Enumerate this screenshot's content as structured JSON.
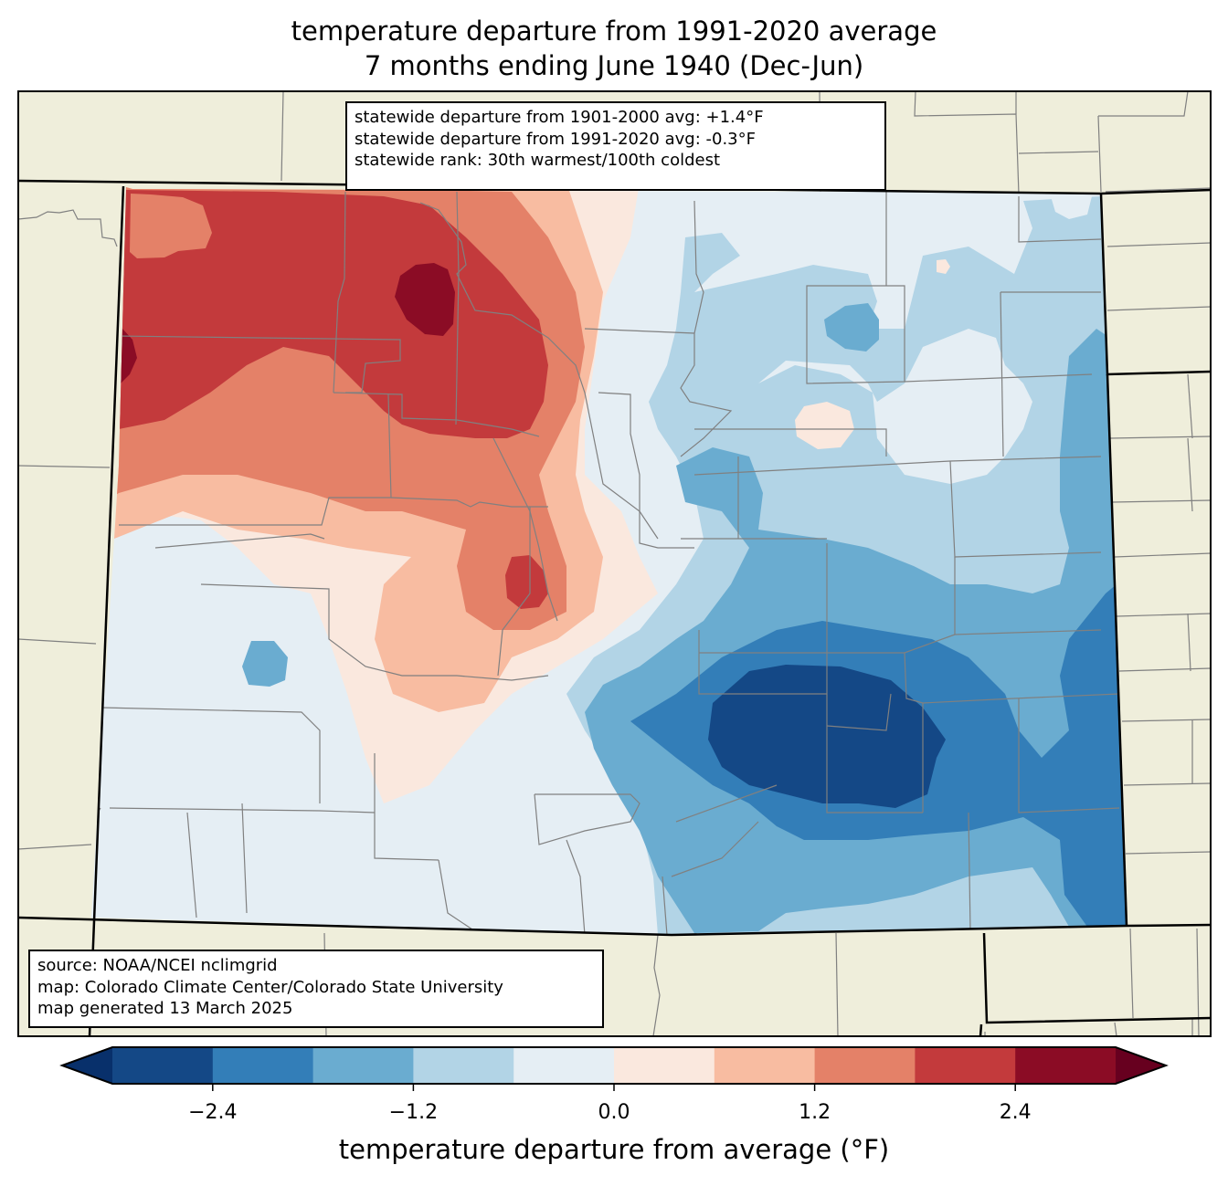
{
  "title": {
    "line1": "temperature departure from 1991-2020 average",
    "line2": "7 months ending June 1940 (Dec-Jun)"
  },
  "stats_box": {
    "line1": "statewide departure from 1901-2000 avg: +1.4°F",
    "line2": "statewide departure from 1991-2020 avg: -0.3°F",
    "line3": "statewide rank: 30th warmest/100th coldest"
  },
  "source_box": {
    "line1": "source: NOAA/NCEI nclimgrid",
    "line2": "map: Colorado Climate Center/Colorado State University",
    "line3": "map generated 13 March 2025"
  },
  "colorbar": {
    "label": "temperature departure from average (°F)",
    "min": -3.0,
    "max": 3.0,
    "step": 0.6,
    "extend": "both",
    "ticks": [
      {
        "value": -2.4,
        "label": "−2.4"
      },
      {
        "value": -1.2,
        "label": "−1.2"
      },
      {
        "value": 0.0,
        "label": "0.0"
      },
      {
        "value": 1.2,
        "label": "1.2"
      },
      {
        "value": 2.4,
        "label": "2.4"
      }
    ],
    "colors": {
      "under": "#08306b",
      "bins": [
        "#144886",
        "#337eb8",
        "#6aacd0",
        "#b2d4e6",
        "#e5eef4",
        "#fae8de",
        "#f8bca1",
        "#e48168",
        "#c33a3c",
        "#8b0c25"
      ],
      "over": "#67001f"
    }
  },
  "map_colors": {
    "land": "#efeedb",
    "state_border": "#000000",
    "county_border": "#808080"
  }
}
